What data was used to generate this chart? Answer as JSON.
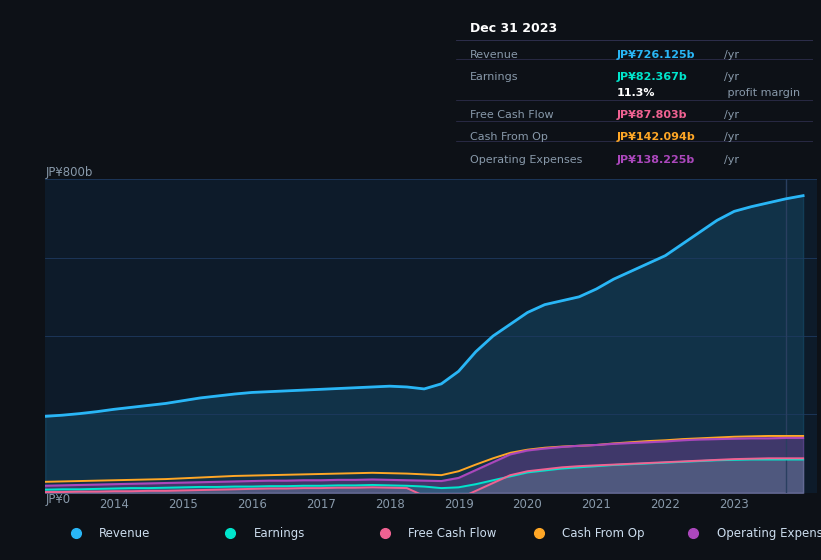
{
  "background_color": "#0d1117",
  "plot_bg_color": "#0d1b2a",
  "years": [
    2013.0,
    2013.25,
    2013.5,
    2013.75,
    2014.0,
    2014.25,
    2014.5,
    2014.75,
    2015.0,
    2015.25,
    2015.5,
    2015.75,
    2016.0,
    2016.25,
    2016.5,
    2016.75,
    2017.0,
    2017.25,
    2017.5,
    2017.75,
    2018.0,
    2018.25,
    2018.5,
    2018.75,
    2019.0,
    2019.25,
    2019.5,
    2019.75,
    2020.0,
    2020.25,
    2020.5,
    2020.75,
    2021.0,
    2021.25,
    2021.5,
    2021.75,
    2022.0,
    2022.25,
    2022.5,
    2022.75,
    2023.0,
    2023.25,
    2023.5,
    2023.75,
    2024.0
  ],
  "revenue": [
    195,
    198,
    202,
    207,
    213,
    218,
    223,
    228,
    235,
    242,
    247,
    252,
    256,
    258,
    260,
    262,
    264,
    266,
    268,
    270,
    272,
    270,
    265,
    278,
    310,
    360,
    400,
    430,
    460,
    480,
    490,
    500,
    520,
    545,
    565,
    585,
    605,
    635,
    665,
    695,
    718,
    730,
    740,
    750,
    758
  ],
  "earnings": [
    8,
    9,
    9,
    10,
    11,
    12,
    12,
    13,
    14,
    15,
    15,
    16,
    16,
    17,
    17,
    18,
    18,
    19,
    19,
    20,
    19,
    18,
    16,
    12,
    14,
    22,
    32,
    42,
    52,
    57,
    62,
    65,
    68,
    71,
    73,
    75,
    77,
    79,
    81,
    83,
    84,
    85,
    85,
    85,
    85
  ],
  "free_cash_flow": [
    2,
    2,
    3,
    3,
    4,
    4,
    5,
    5,
    6,
    7,
    8,
    9,
    10,
    11,
    11,
    12,
    12,
    13,
    13,
    14,
    13,
    12,
    -8,
    -25,
    -15,
    5,
    25,
    45,
    55,
    60,
    65,
    68,
    70,
    72,
    74,
    76,
    78,
    80,
    82,
    84,
    86,
    87,
    88,
    88,
    88
  ],
  "cash_from_op": [
    28,
    29,
    30,
    31,
    32,
    33,
    34,
    35,
    37,
    39,
    41,
    43,
    44,
    45,
    46,
    47,
    48,
    49,
    50,
    51,
    50,
    49,
    47,
    45,
    55,
    72,
    88,
    102,
    110,
    115,
    118,
    120,
    122,
    126,
    129,
    132,
    134,
    137,
    139,
    141,
    143,
    144,
    145,
    145,
    145
  ],
  "operating_expenses": [
    18,
    19,
    20,
    21,
    22,
    23,
    24,
    25,
    26,
    27,
    28,
    29,
    30,
    31,
    31,
    32,
    32,
    33,
    33,
    34,
    33,
    32,
    31,
    30,
    38,
    58,
    78,
    98,
    108,
    113,
    117,
    120,
    122,
    125,
    127,
    129,
    131,
    134,
    136,
    137,
    138,
    139,
    139,
    140,
    140
  ],
  "ylim": [
    0,
    800
  ],
  "xlim_min": 2013.0,
  "xlim_max": 2024.2,
  "ylabel_top": "JP¥800b",
  "ylabel_bot": "JP¥0",
  "xticks": [
    2014,
    2015,
    2016,
    2017,
    2018,
    2019,
    2020,
    2021,
    2022,
    2023
  ],
  "revenue_color": "#29b6f6",
  "earnings_color": "#00e5cc",
  "free_cash_flow_color": "#f06292",
  "cash_from_op_color": "#ffa726",
  "operating_expenses_color": "#ab47bc",
  "grid_color": "#1e3a5f",
  "info_box": {
    "title": "Dec 31 2023",
    "rows": [
      {
        "label": "Revenue",
        "value": "JP¥726.125b",
        "unit": "/yr",
        "value_color": "#29b6f6"
      },
      {
        "label": "Earnings",
        "value": "JP¥82.367b",
        "unit": "/yr",
        "value_color": "#00e5cc"
      },
      {
        "label": "",
        "value": "11.3%",
        "unit": " profit margin",
        "value_color": "#ffffff"
      },
      {
        "label": "Free Cash Flow",
        "value": "JP¥87.803b",
        "unit": "/yr",
        "value_color": "#f06292"
      },
      {
        "label": "Cash From Op",
        "value": "JP¥142.094b",
        "unit": "/yr",
        "value_color": "#ffa726"
      },
      {
        "label": "Operating Expenses",
        "value": "JP¥138.225b",
        "unit": "/yr",
        "value_color": "#ab47bc"
      }
    ]
  },
  "legend_items": [
    {
      "label": "Revenue",
      "color": "#29b6f6"
    },
    {
      "label": "Earnings",
      "color": "#00e5cc"
    },
    {
      "label": "Free Cash Flow",
      "color": "#f06292"
    },
    {
      "label": "Cash From Op",
      "color": "#ffa726"
    },
    {
      "label": "Operating Expenses",
      "color": "#ab47bc"
    }
  ],
  "highlight_x": 2023.75
}
